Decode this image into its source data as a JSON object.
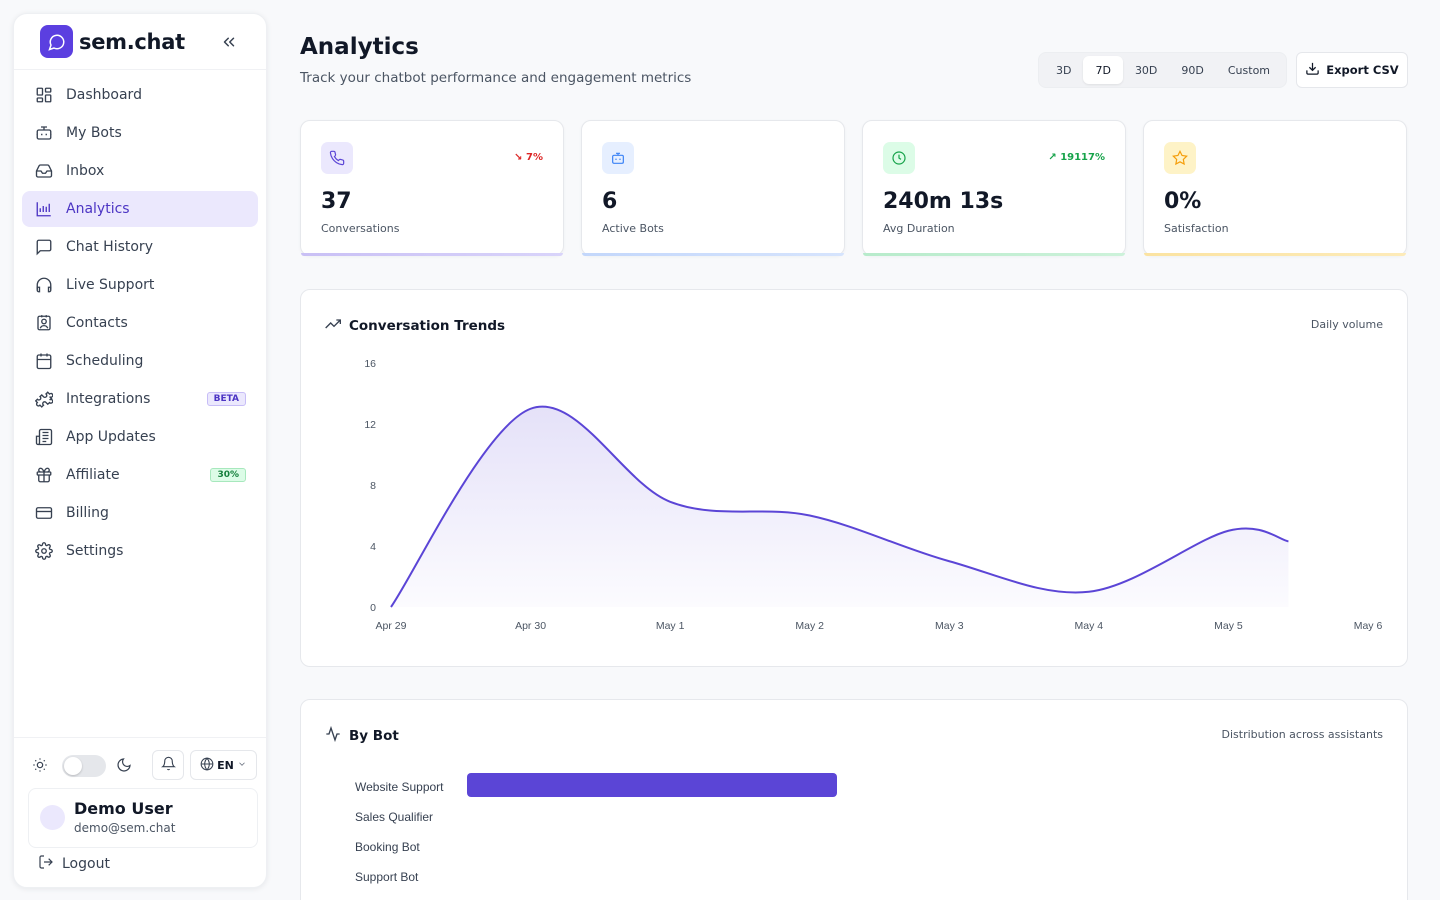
{
  "brand": {
    "name": "sem.chat"
  },
  "nav": [
    {
      "key": "dashboard",
      "label": "Dashboard"
    },
    {
      "key": "my-bots",
      "label": "My Bots"
    },
    {
      "key": "inbox",
      "label": "Inbox"
    },
    {
      "key": "analytics",
      "label": "Analytics",
      "active": true
    },
    {
      "key": "chat-history",
      "label": "Chat History"
    },
    {
      "key": "live-support",
      "label": "Live Support"
    },
    {
      "key": "contacts",
      "label": "Contacts"
    },
    {
      "key": "scheduling",
      "label": "Scheduling"
    },
    {
      "key": "integrations",
      "label": "Integrations",
      "badge": "BETA"
    },
    {
      "key": "app-updates",
      "label": "App Updates"
    },
    {
      "key": "affiliate",
      "label": "Affiliate",
      "badge": "30%"
    },
    {
      "key": "billing",
      "label": "Billing"
    },
    {
      "key": "settings",
      "label": "Settings"
    }
  ],
  "footer": {
    "language": "EN",
    "user_name": "Demo User",
    "user_email": "demo@sem.chat",
    "logout_label": "Logout"
  },
  "header": {
    "title": "Analytics",
    "subtitle": "Track your chatbot performance and engagement metrics",
    "ranges": [
      "3D",
      "7D",
      "30D",
      "90D",
      "Custom"
    ],
    "active_range": "7D",
    "export_label": "Export CSV"
  },
  "stats": [
    {
      "value": "37",
      "label": "Conversations",
      "trend": "7%",
      "trend_dir": "down",
      "icon": "phone-icon",
      "color": "#6d5ae6"
    },
    {
      "value": "6",
      "label": "Active Bots",
      "trend": "",
      "icon": "bot-icon",
      "color": "#3b82f6"
    },
    {
      "value": "240m 13s",
      "label": "Avg Duration",
      "trend": "19117%",
      "trend_dir": "up",
      "icon": "clock-icon",
      "color": "#16a34a"
    },
    {
      "value": "0%",
      "label": "Satisfaction",
      "trend": "",
      "icon": "star-icon",
      "color": "#f59e0b"
    }
  ],
  "trends_panel": {
    "title": "Conversation Trends",
    "note": "Daily volume"
  },
  "bybot_panel": {
    "title": "By Bot",
    "note": "Distribution across assistants"
  },
  "chart_data": [
    {
      "type": "area",
      "title": "Conversation Trends",
      "x": [
        "Apr 29",
        "Apr 30",
        "May 1",
        "May 2",
        "May 3",
        "May 4",
        "May 5",
        "May 6"
      ],
      "y_ticks": [
        16,
        12,
        8,
        4,
        0
      ],
      "series": [
        {
          "values": [
            0,
            13,
            6.9,
            6,
            3,
            1,
            5,
            4.3
          ]
        }
      ],
      "ylim": [
        0,
        16
      ],
      "color": "#5b45d6"
    },
    {
      "type": "bar",
      "title": "By Bot",
      "categories": [
        "Website Support",
        "Sales Qualifier",
        "Booking Bot",
        "Support Bot"
      ],
      "values": [
        1,
        0,
        0,
        0
      ],
      "color": "#5b45d6"
    }
  ]
}
